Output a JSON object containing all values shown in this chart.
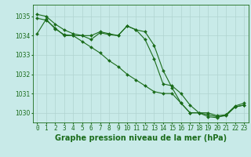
{
  "title": "Graphe pression niveau de la mer (hPa)",
  "xlabel_hours": [
    0,
    1,
    2,
    3,
    4,
    5,
    6,
    7,
    8,
    9,
    10,
    11,
    12,
    13,
    14,
    15,
    16,
    17,
    18,
    19,
    20,
    21,
    22,
    23
  ],
  "line1": [
    1035.1,
    1035.0,
    1034.6,
    1034.3,
    1034.1,
    1034.0,
    1034.0,
    1034.2,
    1034.1,
    1034.0,
    1034.5,
    1034.3,
    1034.2,
    1033.5,
    1032.2,
    1031.3,
    1030.5,
    1030.0,
    1030.0,
    1029.9,
    1029.8,
    1029.85,
    1030.3,
    1030.4
  ],
  "line2": [
    1034.1,
    1034.85,
    1034.35,
    1034.05,
    1034.0,
    1034.0,
    1033.8,
    1034.15,
    1034.05,
    1034.0,
    1034.5,
    1034.3,
    1033.8,
    1032.8,
    1031.5,
    1031.4,
    1031.0,
    1030.4,
    1030.0,
    1030.0,
    1029.85,
    1029.9,
    1030.35,
    1030.5
  ],
  "line3": [
    1034.9,
    1034.8,
    1034.4,
    1034.0,
    1034.0,
    1033.7,
    1033.4,
    1033.1,
    1032.7,
    1032.4,
    1032.0,
    1031.7,
    1031.4,
    1031.1,
    1031.0,
    1031.0,
    1030.5,
    1030.0,
    1030.0,
    1029.8,
    1029.75,
    1029.9,
    1030.3,
    1030.4
  ],
  "line_color": "#1a6b1a",
  "bg_color": "#c8eae8",
  "grid_color": "#b0d4d0",
  "ylim_min": 1029.5,
  "ylim_max": 1035.6,
  "yticks": [
    1030,
    1031,
    1032,
    1033,
    1034,
    1035
  ],
  "title_fontsize": 7.0,
  "tick_fontsize": 5.5,
  "marker_size": 2.0
}
